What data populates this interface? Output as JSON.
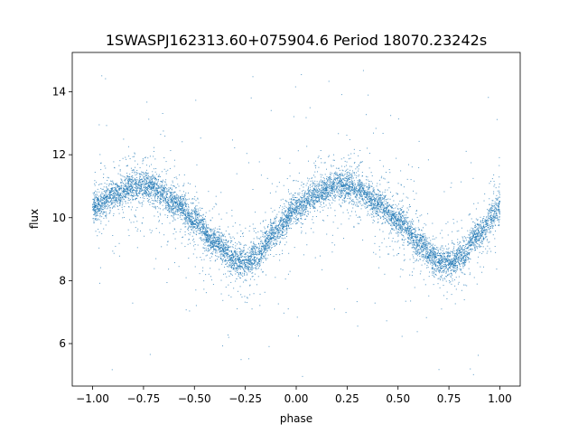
{
  "chart_data": {
    "type": "scatter",
    "title": "1SWASPJ162313.60+075904.6 Period 18070.23242s",
    "xlabel": "phase",
    "ylabel": "flux",
    "xlim": [
      -1.1,
      1.1
    ],
    "ylim": [
      4.65,
      15.25
    ],
    "grid": false,
    "legend": "none",
    "marker_color": "#1f77b4",
    "xticks": [
      {
        "value": -1.0,
        "label": "−1.00"
      },
      {
        "value": -0.75,
        "label": "−0.75"
      },
      {
        "value": -0.5,
        "label": "−0.50"
      },
      {
        "value": -0.25,
        "label": "−0.25"
      },
      {
        "value": 0.0,
        "label": "0.00"
      },
      {
        "value": 0.25,
        "label": "0.25"
      },
      {
        "value": 0.5,
        "label": "0.50"
      },
      {
        "value": 0.75,
        "label": "0.75"
      },
      {
        "value": 1.0,
        "label": "1.00"
      }
    ],
    "yticks": [
      {
        "value": 6,
        "label": "6"
      },
      {
        "value": 8,
        "label": "8"
      },
      {
        "value": 10,
        "label": "10"
      },
      {
        "value": 12,
        "label": "12"
      },
      {
        "value": 14,
        "label": "14"
      }
    ],
    "trend": {
      "x": [
        -1.0,
        -0.9,
        -0.8,
        -0.75,
        -0.7,
        -0.6,
        -0.5,
        -0.4,
        -0.3,
        -0.25,
        -0.2,
        -0.1,
        0.0,
        0.1,
        0.2,
        0.25,
        0.3,
        0.4,
        0.5,
        0.6,
        0.7,
        0.75,
        0.8,
        0.9,
        1.0
      ],
      "y": [
        10.3,
        10.7,
        11.0,
        11.05,
        10.95,
        10.5,
        9.9,
        9.2,
        8.65,
        8.55,
        8.75,
        9.55,
        10.3,
        10.75,
        11.05,
        11.05,
        10.9,
        10.45,
        9.9,
        9.2,
        8.65,
        8.55,
        8.75,
        9.5,
        10.3
      ]
    }
  }
}
